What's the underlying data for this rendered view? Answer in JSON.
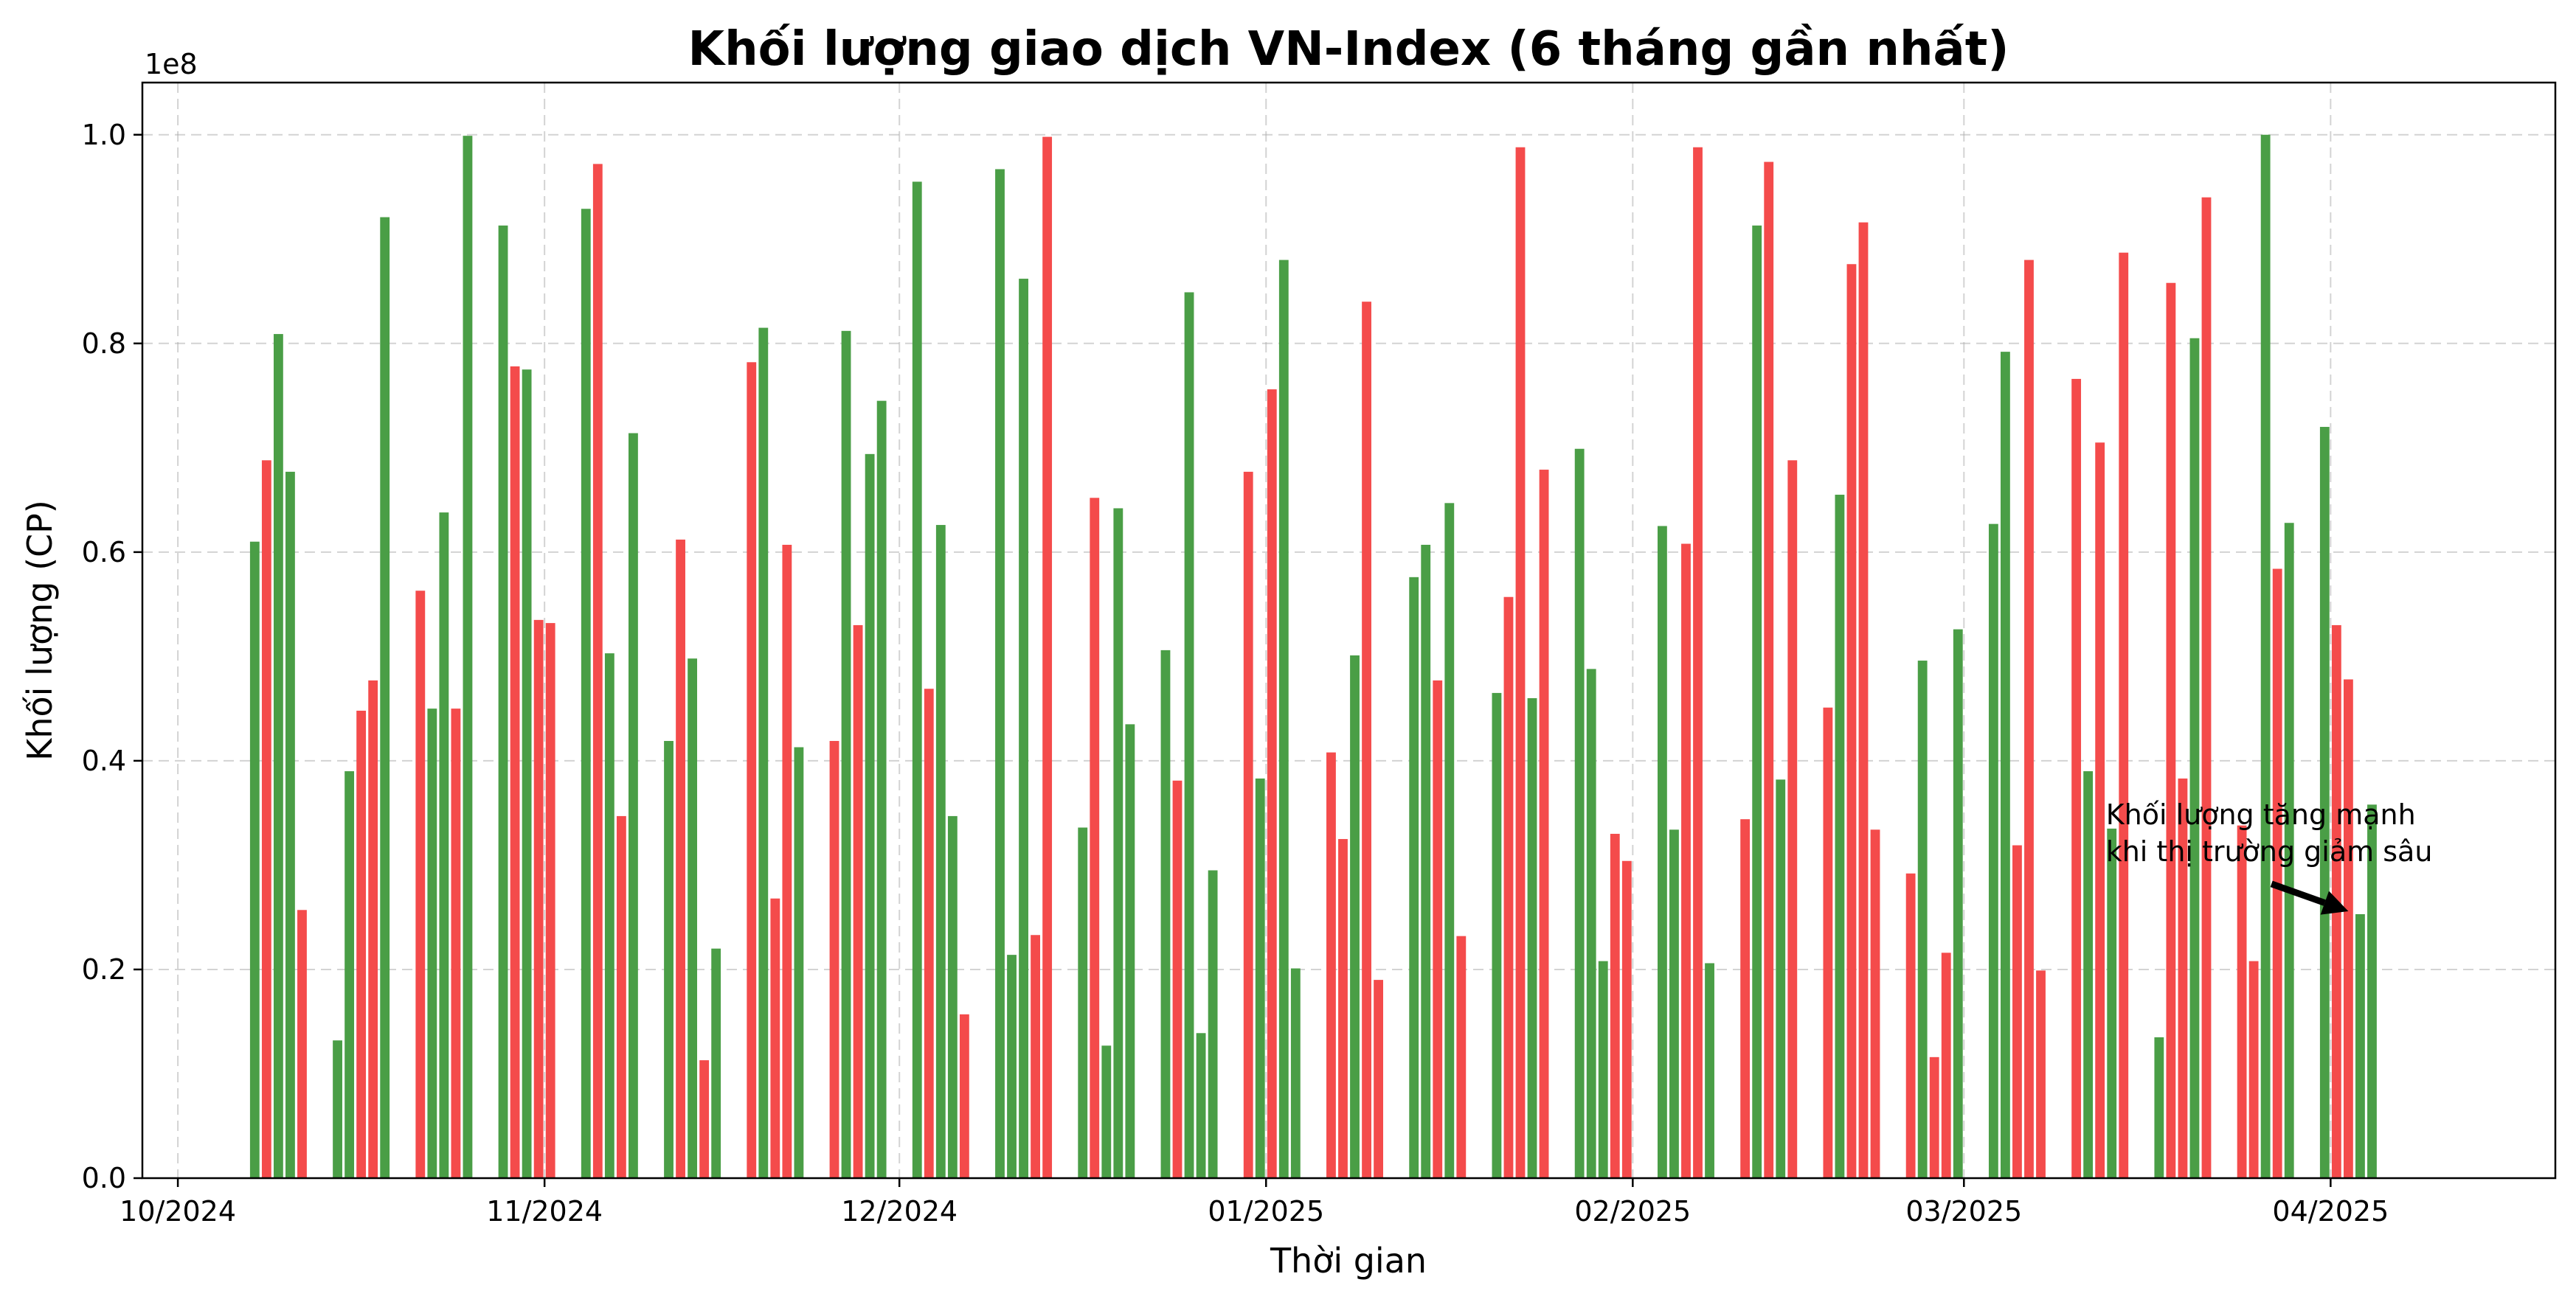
{
  "chart_data": {
    "type": "bar",
    "title": "Khối lượng giao dịch VN-Index (6 tháng gần nhất)",
    "xlabel": "Thời gian",
    "ylabel": "Khối lượng (CP)",
    "y_offset_label": "1e8",
    "ylim": [
      0,
      105000000
    ],
    "xlim": [
      "2024-09-28",
      "2025-04-20"
    ],
    "grid": true,
    "y_ticks": [
      {
        "value": 0,
        "label": "0.0"
      },
      {
        "value": 20000000,
        "label": "0.2"
      },
      {
        "value": 40000000,
        "label": "0.4"
      },
      {
        "value": 60000000,
        "label": "0.6"
      },
      {
        "value": 80000000,
        "label": "0.8"
      },
      {
        "value": 100000000,
        "label": "1.0"
      }
    ],
    "x_ticks": [
      {
        "value": "2024-10-01",
        "label": "10/2024"
      },
      {
        "value": "2024-11-01",
        "label": "11/2024"
      },
      {
        "value": "2024-12-01",
        "label": "12/2024"
      },
      {
        "value": "2025-01-01",
        "label": "01/2025"
      },
      {
        "value": "2025-02-01",
        "label": "02/2025"
      },
      {
        "value": "2025-03-01",
        "label": "03/2025"
      },
      {
        "value": "2025-04-01",
        "label": "04/2025"
      }
    ],
    "colors": {
      "up": "#4a9e46",
      "down": "#f44b4b"
    },
    "annotation": {
      "lines": [
        "Khối lượng tăng mạnh",
        "khi thị trường giảm sâu"
      ],
      "text_at": {
        "x": "2025-03-13",
        "y": 31500000
      },
      "arrow_to": {
        "x": "2025-04-02",
        "y": 25300000
      }
    },
    "bars": [
      {
        "x": "2024-10-07",
        "value": 61000000,
        "dir": "up"
      },
      {
        "x": "2024-10-08",
        "value": 68800000,
        "dir": "down"
      },
      {
        "x": "2024-10-09",
        "value": 80900000,
        "dir": "up"
      },
      {
        "x": "2024-10-10",
        "value": 67700000,
        "dir": "up"
      },
      {
        "x": "2024-10-11",
        "value": 25700000,
        "dir": "down"
      },
      {
        "x": "2024-10-14",
        "value": 13200000,
        "dir": "up"
      },
      {
        "x": "2024-10-15",
        "value": 39000000,
        "dir": "up"
      },
      {
        "x": "2024-10-16",
        "value": 44800000,
        "dir": "down"
      },
      {
        "x": "2024-10-17",
        "value": 47700000,
        "dir": "down"
      },
      {
        "x": "2024-10-18",
        "value": 92100000,
        "dir": "up"
      },
      {
        "x": "2024-10-21",
        "value": 56300000,
        "dir": "down"
      },
      {
        "x": "2024-10-22",
        "value": 45000000,
        "dir": "up"
      },
      {
        "x": "2024-10-23",
        "value": 63800000,
        "dir": "up"
      },
      {
        "x": "2024-10-24",
        "value": 45000000,
        "dir": "down"
      },
      {
        "x": "2024-10-25",
        "value": 99900000,
        "dir": "up"
      },
      {
        "x": "2024-10-28",
        "value": 91300000,
        "dir": "up"
      },
      {
        "x": "2024-10-29",
        "value": 77800000,
        "dir": "down"
      },
      {
        "x": "2024-10-30",
        "value": 77500000,
        "dir": "up"
      },
      {
        "x": "2024-10-31",
        "value": 53500000,
        "dir": "down"
      },
      {
        "x": "2024-11-01",
        "value": 53200000,
        "dir": "down"
      },
      {
        "x": "2024-11-04",
        "value": 92900000,
        "dir": "up"
      },
      {
        "x": "2024-11-05",
        "value": 97200000,
        "dir": "down"
      },
      {
        "x": "2024-11-06",
        "value": 50300000,
        "dir": "up"
      },
      {
        "x": "2024-11-07",
        "value": 34700000,
        "dir": "down"
      },
      {
        "x": "2024-11-08",
        "value": 71400000,
        "dir": "up"
      },
      {
        "x": "2024-11-11",
        "value": 41900000,
        "dir": "up"
      },
      {
        "x": "2024-11-12",
        "value": 61200000,
        "dir": "down"
      },
      {
        "x": "2024-11-13",
        "value": 49800000,
        "dir": "up"
      },
      {
        "x": "2024-11-14",
        "value": 11300000,
        "dir": "down"
      },
      {
        "x": "2024-11-15",
        "value": 22000000,
        "dir": "up"
      },
      {
        "x": "2024-11-18",
        "value": 78200000,
        "dir": "down"
      },
      {
        "x": "2024-11-19",
        "value": 81500000,
        "dir": "up"
      },
      {
        "x": "2024-11-20",
        "value": 26800000,
        "dir": "down"
      },
      {
        "x": "2024-11-21",
        "value": 60700000,
        "dir": "down"
      },
      {
        "x": "2024-11-22",
        "value": 41300000,
        "dir": "up"
      },
      {
        "x": "2024-11-25",
        "value": 41900000,
        "dir": "down"
      },
      {
        "x": "2024-11-26",
        "value": 81200000,
        "dir": "up"
      },
      {
        "x": "2024-11-27",
        "value": 53000000,
        "dir": "down"
      },
      {
        "x": "2024-11-28",
        "value": 69400000,
        "dir": "up"
      },
      {
        "x": "2024-11-29",
        "value": 74500000,
        "dir": "up"
      },
      {
        "x": "2024-12-02",
        "value": 95500000,
        "dir": "up"
      },
      {
        "x": "2024-12-03",
        "value": 46900000,
        "dir": "down"
      },
      {
        "x": "2024-12-04",
        "value": 62600000,
        "dir": "up"
      },
      {
        "x": "2024-12-05",
        "value": 34700000,
        "dir": "up"
      },
      {
        "x": "2024-12-06",
        "value": 15700000,
        "dir": "down"
      },
      {
        "x": "2024-12-09",
        "value": 96700000,
        "dir": "up"
      },
      {
        "x": "2024-12-10",
        "value": 21400000,
        "dir": "up"
      },
      {
        "x": "2024-12-11",
        "value": 86200000,
        "dir": "up"
      },
      {
        "x": "2024-12-12",
        "value": 23300000,
        "dir": "down"
      },
      {
        "x": "2024-12-13",
        "value": 99800000,
        "dir": "down"
      },
      {
        "x": "2024-12-16",
        "value": 33600000,
        "dir": "up"
      },
      {
        "x": "2024-12-17",
        "value": 65200000,
        "dir": "down"
      },
      {
        "x": "2024-12-18",
        "value": 12700000,
        "dir": "up"
      },
      {
        "x": "2024-12-19",
        "value": 64200000,
        "dir": "up"
      },
      {
        "x": "2024-12-20",
        "value": 43500000,
        "dir": "up"
      },
      {
        "x": "2024-12-23",
        "value": 50600000,
        "dir": "up"
      },
      {
        "x": "2024-12-24",
        "value": 38100000,
        "dir": "down"
      },
      {
        "x": "2024-12-25",
        "value": 84900000,
        "dir": "up"
      },
      {
        "x": "2024-12-26",
        "value": 13900000,
        "dir": "up"
      },
      {
        "x": "2024-12-27",
        "value": 29500000,
        "dir": "up"
      },
      {
        "x": "2024-12-30",
        "value": 67700000,
        "dir": "down"
      },
      {
        "x": "2024-12-31",
        "value": 38300000,
        "dir": "up"
      },
      {
        "x": "2025-01-01",
        "value": 75600000,
        "dir": "down"
      },
      {
        "x": "2025-01-02",
        "value": 88000000,
        "dir": "up"
      },
      {
        "x": "2025-01-03",
        "value": 20100000,
        "dir": "up"
      },
      {
        "x": "2025-01-06",
        "value": 40800000,
        "dir": "down"
      },
      {
        "x": "2025-01-07",
        "value": 32500000,
        "dir": "down"
      },
      {
        "x": "2025-01-08",
        "value": 50100000,
        "dir": "up"
      },
      {
        "x": "2025-01-09",
        "value": 84000000,
        "dir": "down"
      },
      {
        "x": "2025-01-10",
        "value": 19000000,
        "dir": "down"
      },
      {
        "x": "2025-01-13",
        "value": 57600000,
        "dir": "up"
      },
      {
        "x": "2025-01-14",
        "value": 60700000,
        "dir": "up"
      },
      {
        "x": "2025-01-15",
        "value": 47700000,
        "dir": "down"
      },
      {
        "x": "2025-01-16",
        "value": 64700000,
        "dir": "up"
      },
      {
        "x": "2025-01-17",
        "value": 23200000,
        "dir": "down"
      },
      {
        "x": "2025-01-20",
        "value": 46500000,
        "dir": "up"
      },
      {
        "x": "2025-01-21",
        "value": 55700000,
        "dir": "down"
      },
      {
        "x": "2025-01-22",
        "value": 98800000,
        "dir": "down"
      },
      {
        "x": "2025-01-23",
        "value": 46000000,
        "dir": "up"
      },
      {
        "x": "2025-01-24",
        "value": 67900000,
        "dir": "down"
      },
      {
        "x": "2025-01-27",
        "value": 69900000,
        "dir": "up"
      },
      {
        "x": "2025-01-28",
        "value": 48800000,
        "dir": "up"
      },
      {
        "x": "2025-01-29",
        "value": 20800000,
        "dir": "up"
      },
      {
        "x": "2025-01-30",
        "value": 33000000,
        "dir": "down"
      },
      {
        "x": "2025-01-31",
        "value": 30400000,
        "dir": "down"
      },
      {
        "x": "2025-02-03",
        "value": 62500000,
        "dir": "up"
      },
      {
        "x": "2025-02-04",
        "value": 33400000,
        "dir": "up"
      },
      {
        "x": "2025-02-05",
        "value": 60800000,
        "dir": "down"
      },
      {
        "x": "2025-02-06",
        "value": 98800000,
        "dir": "down"
      },
      {
        "x": "2025-02-07",
        "value": 20600000,
        "dir": "up"
      },
      {
        "x": "2025-02-10",
        "value": 34400000,
        "dir": "down"
      },
      {
        "x": "2025-02-11",
        "value": 91300000,
        "dir": "up"
      },
      {
        "x": "2025-02-12",
        "value": 97400000,
        "dir": "down"
      },
      {
        "x": "2025-02-13",
        "value": 38200000,
        "dir": "up"
      },
      {
        "x": "2025-02-14",
        "value": 68800000,
        "dir": "down"
      },
      {
        "x": "2025-02-17",
        "value": 45100000,
        "dir": "down"
      },
      {
        "x": "2025-02-18",
        "value": 65500000,
        "dir": "up"
      },
      {
        "x": "2025-02-19",
        "value": 87600000,
        "dir": "down"
      },
      {
        "x": "2025-02-20",
        "value": 91600000,
        "dir": "down"
      },
      {
        "x": "2025-02-21",
        "value": 33400000,
        "dir": "down"
      },
      {
        "x": "2025-02-24",
        "value": 29200000,
        "dir": "down"
      },
      {
        "x": "2025-02-25",
        "value": 49600000,
        "dir": "up"
      },
      {
        "x": "2025-02-26",
        "value": 11600000,
        "dir": "down"
      },
      {
        "x": "2025-02-27",
        "value": 21600000,
        "dir": "down"
      },
      {
        "x": "2025-02-28",
        "value": 52600000,
        "dir": "up"
      },
      {
        "x": "2025-03-03",
        "value": 62700000,
        "dir": "up"
      },
      {
        "x": "2025-03-04",
        "value": 79200000,
        "dir": "up"
      },
      {
        "x": "2025-03-05",
        "value": 31900000,
        "dir": "down"
      },
      {
        "x": "2025-03-06",
        "value": 88000000,
        "dir": "down"
      },
      {
        "x": "2025-03-07",
        "value": 19900000,
        "dir": "down"
      },
      {
        "x": "2025-03-10",
        "value": 76600000,
        "dir": "down"
      },
      {
        "x": "2025-03-11",
        "value": 39000000,
        "dir": "up"
      },
      {
        "x": "2025-03-12",
        "value": 70500000,
        "dir": "down"
      },
      {
        "x": "2025-03-13",
        "value": 33500000,
        "dir": "up"
      },
      {
        "x": "2025-03-14",
        "value": 88700000,
        "dir": "down"
      },
      {
        "x": "2025-03-17",
        "value": 13500000,
        "dir": "up"
      },
      {
        "x": "2025-03-18",
        "value": 85800000,
        "dir": "down"
      },
      {
        "x": "2025-03-19",
        "value": 38300000,
        "dir": "down"
      },
      {
        "x": "2025-03-20",
        "value": 80500000,
        "dir": "up"
      },
      {
        "x": "2025-03-21",
        "value": 94000000,
        "dir": "down"
      },
      {
        "x": "2025-03-24",
        "value": 33800000,
        "dir": "down"
      },
      {
        "x": "2025-03-25",
        "value": 20800000,
        "dir": "down"
      },
      {
        "x": "2025-03-26",
        "value": 100000000,
        "dir": "up"
      },
      {
        "x": "2025-03-27",
        "value": 58400000,
        "dir": "down"
      },
      {
        "x": "2025-03-28",
        "value": 62800000,
        "dir": "up"
      },
      {
        "x": "2025-03-31",
        "value": 72000000,
        "dir": "up"
      },
      {
        "x": "2025-04-01",
        "value": 53000000,
        "dir": "down"
      },
      {
        "x": "2025-04-02",
        "value": 47800000,
        "dir": "down"
      },
      {
        "x": "2025-04-03",
        "value": 25300000,
        "dir": "up"
      },
      {
        "x": "2025-04-04",
        "value": 35800000,
        "dir": "up"
      }
    ]
  }
}
